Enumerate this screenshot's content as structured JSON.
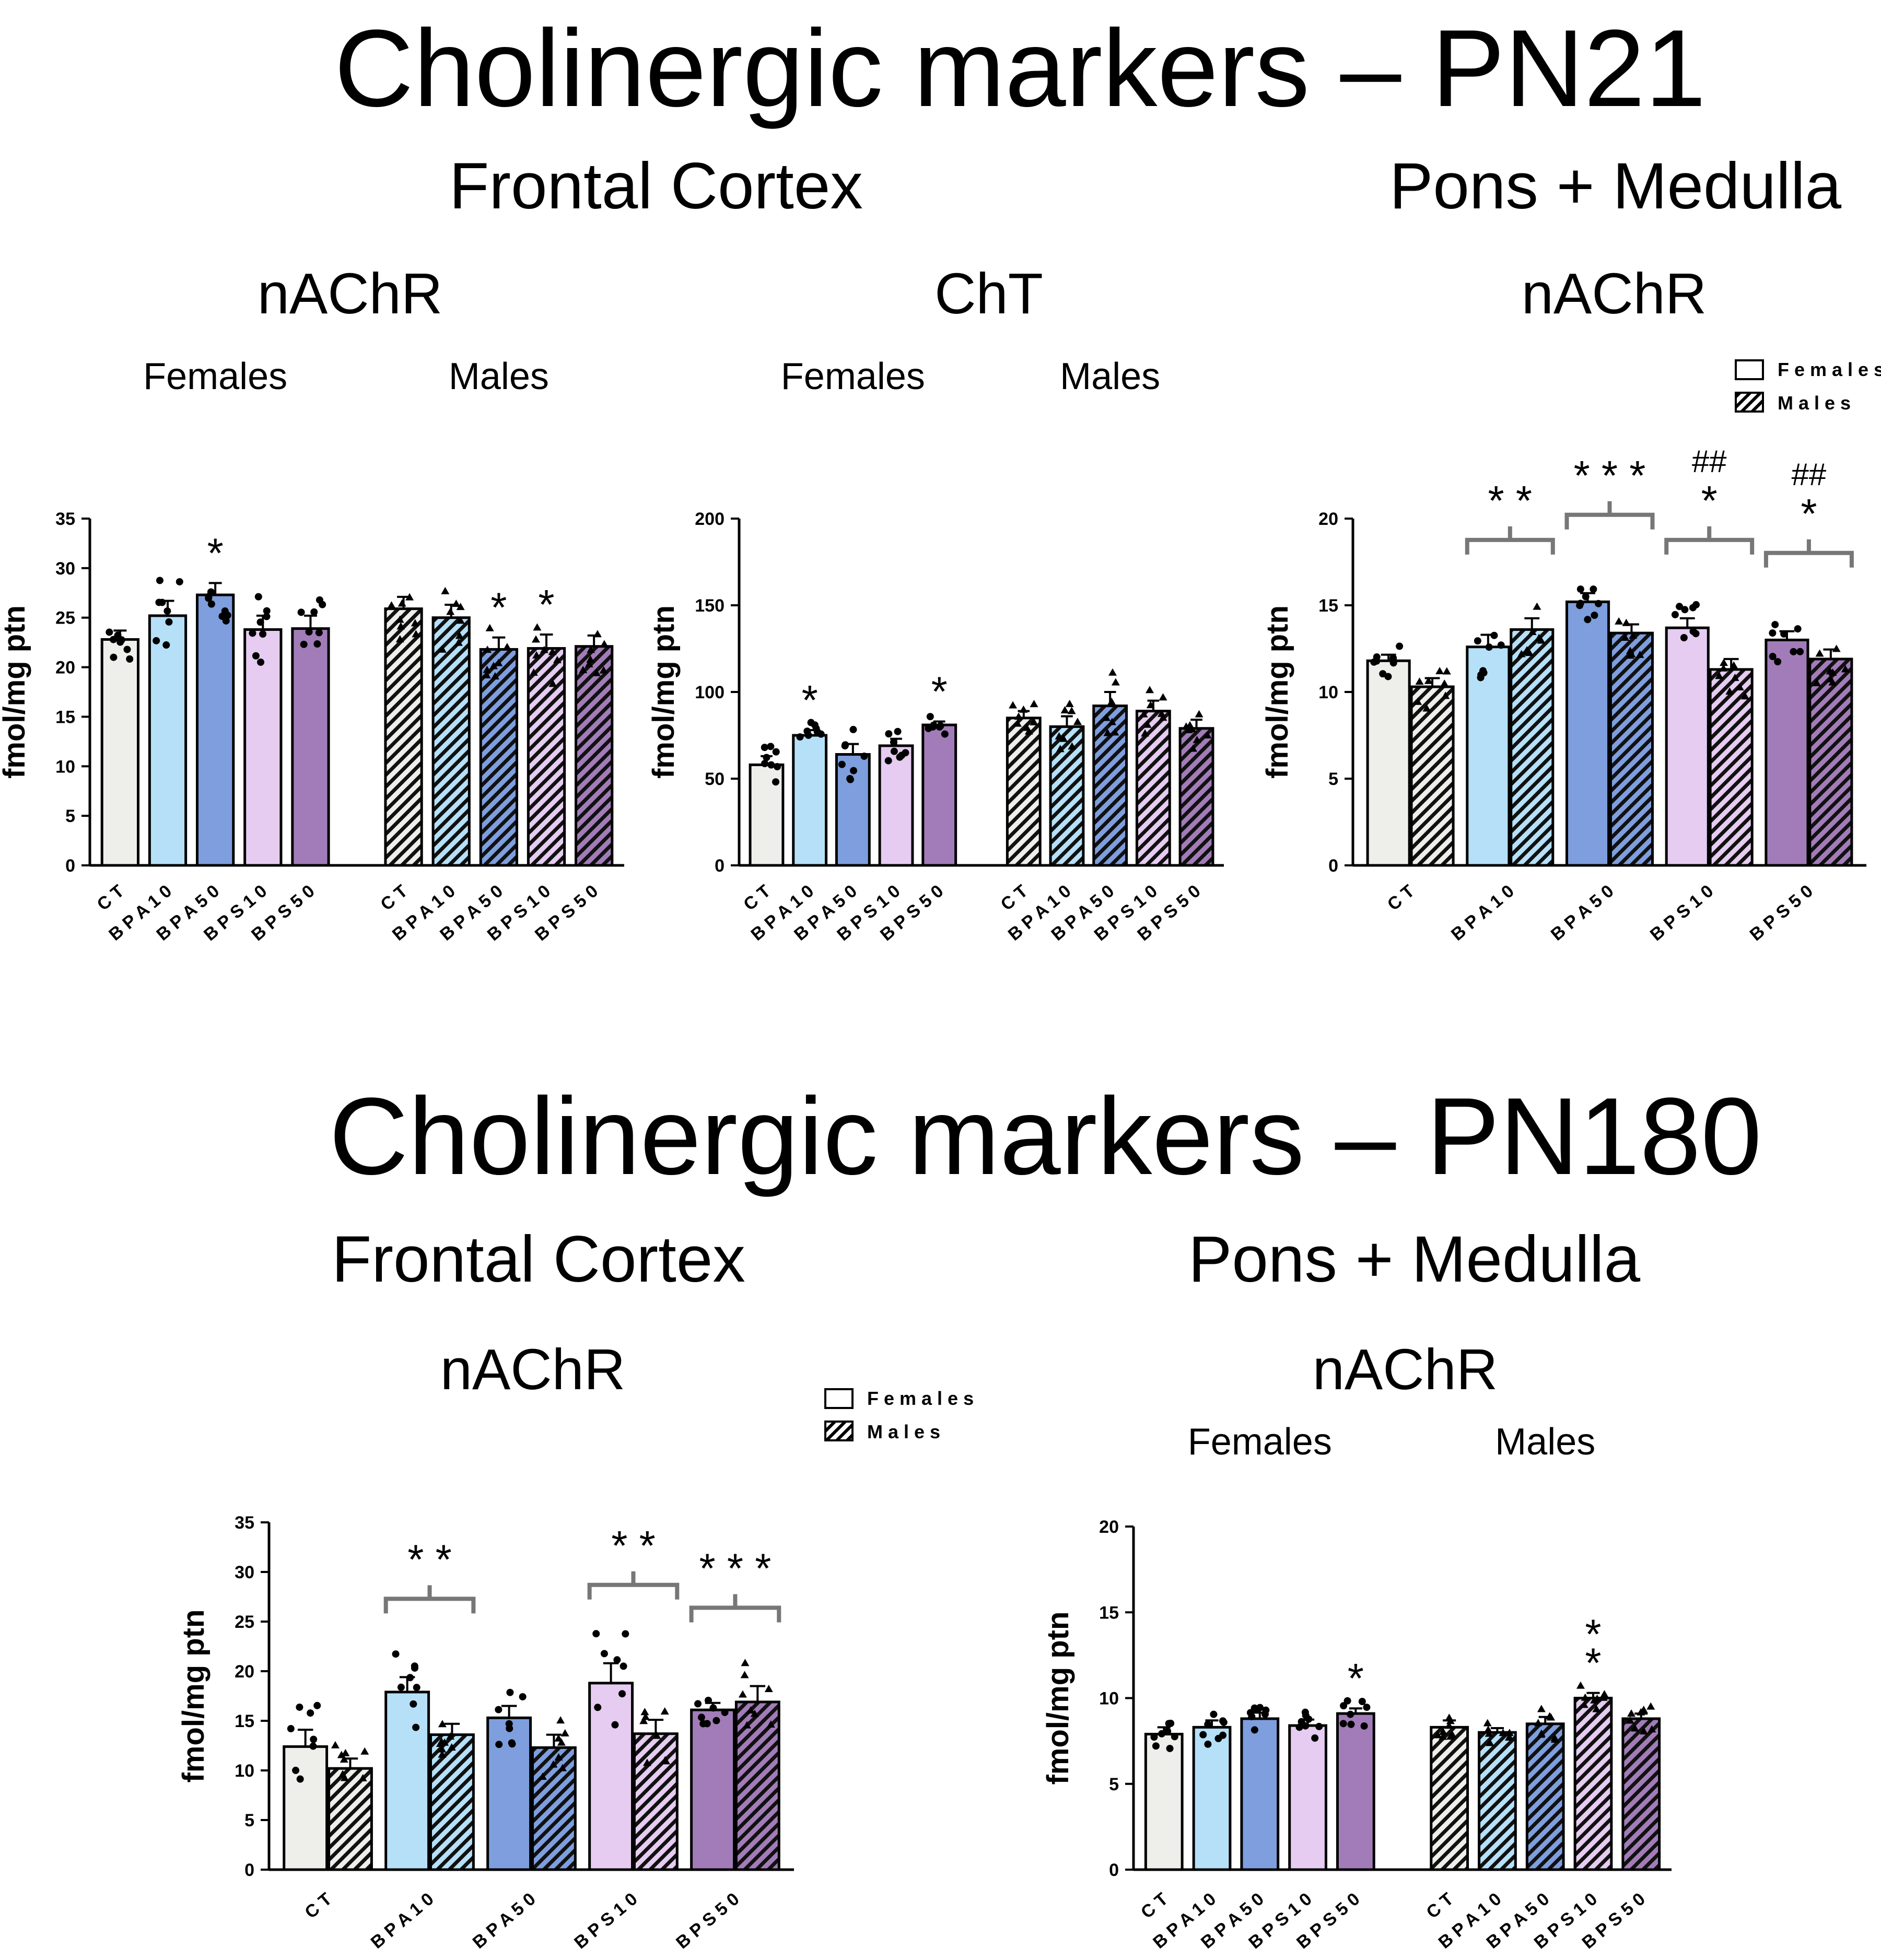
{
  "page": {
    "title_pn21": "Cholinergic markers – PN21",
    "title_pn180": "Cholinergic markers – PN180",
    "pn21_region_left": "Frontal Cortex",
    "pn21_region_right": "Pons + Medulla",
    "pn180_region_left": "Frontal Cortex",
    "pn180_region_right": "Pons + Medulla"
  },
  "colors": {
    "CT": "#eeefea",
    "BPA10": "#b5e0f8",
    "BPA50": "#7e9ede",
    "BPS10": "#e5ccf0",
    "BPS50": "#a27cb8"
  },
  "chart_data": [
    {
      "id": "pn21_fc_nachr",
      "type": "bar",
      "layout": "sex-blocks",
      "title": "nAChR",
      "group_labels": [
        "Females",
        "Males"
      ],
      "ylabel": "fmol/mg ptn",
      "ylim": [
        0,
        35
      ],
      "yticks": [
        0,
        5,
        10,
        15,
        20,
        25,
        30,
        35
      ],
      "categories": [
        "CT",
        "BPA10",
        "BPA50",
        "BPS10",
        "BPS50"
      ],
      "series": [
        {
          "name": "Females",
          "values": [
            22.8,
            25.2,
            27.3,
            23.8,
            23.9
          ],
          "sem": [
            0.9,
            1.5,
            1.2,
            1.4,
            1.3
          ],
          "annotations": [
            "",
            "",
            "*",
            "",
            ""
          ]
        },
        {
          "name": "Males",
          "values": [
            25.9,
            25.0,
            21.8,
            21.9,
            22.1
          ],
          "sem": [
            1.2,
            1.3,
            1.2,
            1.4,
            1.1
          ],
          "annotations": [
            "",
            "",
            "*",
            "*",
            ""
          ]
        }
      ]
    },
    {
      "id": "pn21_fc_cht",
      "type": "bar",
      "layout": "sex-blocks",
      "title": "ChT",
      "group_labels": [
        "Females",
        "Males"
      ],
      "ylabel": "fmol/mg ptn",
      "ylim": [
        0,
        200
      ],
      "yticks": [
        0,
        50,
        100,
        150,
        200
      ],
      "categories": [
        "CT",
        "BPA10",
        "BPA50",
        "BPS10",
        "BPS50"
      ],
      "series": [
        {
          "name": "Females",
          "values": [
            58,
            75,
            64,
            69,
            81
          ],
          "sem": [
            5,
            3,
            6,
            4,
            2
          ],
          "annotations": [
            "",
            "*",
            "",
            "",
            "*"
          ]
        },
        {
          "name": "Males",
          "values": [
            85,
            80,
            92,
            89,
            79
          ],
          "sem": [
            4,
            6,
            8,
            6,
            5
          ],
          "annotations": [
            "",
            "",
            "",
            "",
            ""
          ]
        }
      ]
    },
    {
      "id": "pn21_pm_nachr",
      "type": "bar",
      "layout": "paired",
      "title": "nAChR",
      "ylabel": "fmol/mg ptn",
      "ylim": [
        0,
        20
      ],
      "yticks": [
        0,
        5,
        10,
        15,
        20
      ],
      "categories": [
        "CT",
        "BPA10",
        "BPA50",
        "BPS10",
        "BPS50"
      ],
      "legend": [
        "Females",
        "Males"
      ],
      "legend_position": "top-right",
      "series": [
        {
          "name": "Females",
          "values": [
            11.8,
            12.6,
            15.2,
            13.7,
            13.0
          ],
          "sem": [
            0.35,
            0.7,
            0.5,
            0.55,
            0.5
          ]
        },
        {
          "name": "Males",
          "values": [
            10.3,
            13.6,
            13.4,
            11.3,
            11.9
          ],
          "sem": [
            0.5,
            0.65,
            0.5,
            0.6,
            0.55
          ]
        }
      ],
      "bracket_annotations": [
        "",
        "**",
        "***",
        "*",
        "*"
      ],
      "hash_annotations": [
        "",
        "",
        "",
        "##",
        "##"
      ]
    },
    {
      "id": "pn180_fc_nachr",
      "type": "bar",
      "layout": "paired",
      "title": "nAChR",
      "ylabel": "fmol/mg ptn",
      "ylim": [
        0,
        35
      ],
      "yticks": [
        0,
        5,
        10,
        15,
        20,
        25,
        30,
        35
      ],
      "categories": [
        "CT",
        "BPA10",
        "BPA50",
        "BPS10",
        "BPS50"
      ],
      "legend": [
        "Females",
        "Males"
      ],
      "legend_position": "top-right",
      "series": [
        {
          "name": "Females",
          "values": [
            12.4,
            17.9,
            15.3,
            18.8,
            16.1
          ],
          "sem": [
            1.7,
            1.5,
            1.2,
            2.0,
            0.7
          ]
        },
        {
          "name": "Males",
          "values": [
            10.2,
            13.6,
            12.3,
            13.7,
            16.9
          ],
          "sem": [
            1.0,
            1.1,
            1.3,
            1.4,
            1.6
          ]
        }
      ],
      "bracket_annotations": [
        "",
        "**",
        "",
        "**",
        "***"
      ],
      "hash_annotations": [
        "",
        "",
        "",
        "",
        ""
      ]
    },
    {
      "id": "pn180_pm_nachr",
      "type": "bar",
      "layout": "sex-blocks",
      "title": "nAChR",
      "group_labels": [
        "Females",
        "Males"
      ],
      "ylabel": "fmol/mg ptn",
      "ylim": [
        0,
        20
      ],
      "yticks": [
        0,
        5,
        10,
        15,
        20
      ],
      "categories": [
        "CT",
        "BPA10",
        "BPA50",
        "BPS10",
        "BPS50"
      ],
      "series": [
        {
          "name": "Females",
          "values": [
            7.9,
            8.3,
            8.8,
            8.4,
            9.1
          ],
          "sem": [
            0.4,
            0.4,
            0.35,
            0.35,
            0.3
          ]
        },
        {
          "name": "Males",
          "values": [
            8.3,
            8.0,
            8.5,
            10.0,
            8.8
          ],
          "sem": [
            0.4,
            0.25,
            0.4,
            0.3,
            0.3
          ]
        }
      ],
      "annotations_males": [
        "",
        "",
        "",
        "**",
        ""
      ],
      "annotations_females": [
        "",
        "",
        "",
        "",
        "*"
      ]
    }
  ]
}
